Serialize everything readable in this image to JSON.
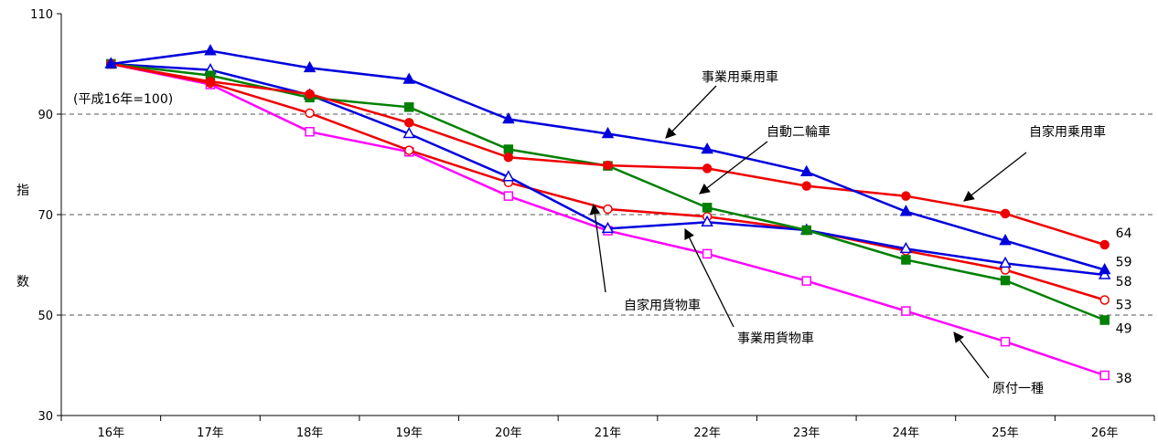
{
  "chart_data": {
    "type": "line",
    "note": "(平成16年=100)",
    "ylabel": "指数",
    "ylabel_chars": [
      "指",
      "数"
    ],
    "categories": [
      "16年",
      "17年",
      "18年",
      "19年",
      "20年",
      "21年",
      "22年",
      "23年",
      "24年",
      "25年",
      "26年"
    ],
    "ylim": [
      30,
      110
    ],
    "yticks": [
      30,
      50,
      70,
      90,
      110
    ],
    "grid_dashed": [
      50,
      70,
      90
    ],
    "series": [
      {
        "name": "事業用乗用車",
        "color": "#0000dd",
        "marker": "triangle",
        "filled": true,
        "values": [
          100,
          102.6,
          99.2,
          96.9,
          89.0,
          86.1,
          83.0,
          78.5,
          70.6,
          64.8,
          59
        ],
        "end_label": "59"
      },
      {
        "name": "自家用乗用車",
        "color": "#ee0000",
        "marker": "circle",
        "filled": true,
        "values": [
          100,
          96.5,
          94.0,
          88.3,
          81.4,
          79.8,
          79.2,
          75.7,
          73.7,
          70.2,
          64
        ],
        "end_label": "64"
      },
      {
        "name": "自動二輪車",
        "color": "#008000",
        "marker": "square",
        "filled": true,
        "values": [
          100,
          97.7,
          93.3,
          91.4,
          83.0,
          79.7,
          71.4,
          66.9,
          61.0,
          56.9,
          49
        ],
        "end_label": "49"
      },
      {
        "name": "自家用貨物車",
        "color": "#0000dd",
        "marker": "triangle",
        "filled": false,
        "values": [
          100,
          98.8,
          93.8,
          86.1,
          77.5,
          67.2,
          68.5,
          66.9,
          63.2,
          60.3,
          58
        ],
        "end_label": "58"
      },
      {
        "name": "事業用貨物車",
        "color": "#ee0000",
        "marker": "circle",
        "filled": false,
        "values": [
          100,
          96.2,
          90.2,
          82.8,
          76.4,
          71.1,
          69.6,
          66.9,
          62.8,
          59.0,
          53
        ],
        "end_label": "53"
      },
      {
        "name": "原付一種",
        "color": "#ff00ff",
        "marker": "square",
        "filled": false,
        "values": [
          100,
          95.9,
          86.5,
          82.5,
          73.7,
          66.8,
          62.2,
          56.8,
          50.8,
          44.7,
          38
        ],
        "end_label": "38"
      }
    ],
    "annotations": [
      {
        "text": "事業用乗用車"
      },
      {
        "text": "自動二輪車"
      },
      {
        "text": "自家用乗用車"
      },
      {
        "text": "自家用貨物車"
      },
      {
        "text": "事業用貨物車"
      },
      {
        "text": "原付一種"
      }
    ]
  }
}
